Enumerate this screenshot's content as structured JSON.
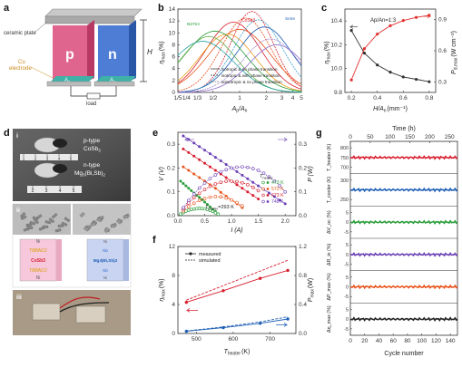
{
  "panels": {
    "a": {
      "label": "a",
      "ceramic": "ceramic plate",
      "cu": "Cu",
      "electrode": "electrode",
      "p": "p",
      "n": "n",
      "ap": "A",
      "ap_sub": "p",
      "an": "A",
      "an_sub": "n",
      "H": "H",
      "load": "load"
    },
    "b": {
      "label": "b",
      "ylabel": "η",
      "ylabel_sub": "max",
      "ylabel_unit": "(%)",
      "xlabel": "A",
      "xlabel_sub1": "p",
      "xlabel_mid": "/A",
      "xlabel_sub2": "n",
      "yticks": [
        "0",
        "2",
        "4",
        "6",
        "8",
        "10",
        "12",
        "14"
      ],
      "xticks": [
        "1/5",
        "1/4",
        "1/3",
        "1/2",
        "1",
        "2",
        "3",
        "4",
        "5"
      ],
      "legend": [
        "isotropic & no phase transition",
        "isotropic & with phase transition",
        "anisotropic & no phase transition"
      ],
      "labels": [
        "CoSb3",
        "Bi2Te3",
        "SnSe"
      ]
    },
    "c": {
      "label": "c",
      "annotation": "Ap/An=1:3",
      "ylabel_left": "η",
      "ylabel_left_sub": "max",
      "ylabel_left_unit": "(%)",
      "ylabel_right": "P",
      "ylabel_right_sub": "d,max",
      "ylabel_right_unit": "(W cm⁻²)",
      "xlabel": "H/A",
      "xlabel_sub": "n",
      "xlabel_unit": "(mm⁻¹)",
      "yticks_left": [
        "9.8",
        "10.0",
        "10.2",
        "10.4"
      ],
      "yticks_right": [
        "0.3",
        "0.6",
        "0.9"
      ],
      "xticks": [
        "0.2",
        "0.4",
        "0.6",
        "0.8"
      ]
    },
    "d": {
      "label": "d",
      "sub_i": "i",
      "sub_ii": "ii",
      "sub_iii": "iii",
      "ptype": "p-type",
      "ptype_mat": "CoSb",
      "ptype_mat_sub": "3",
      "ntype": "n-type",
      "ntype_mat": "Mg",
      "ntype_mat_sub": "3",
      "ntype_mat_tail": "(Bi,Sb)",
      "ntype_mat_tail_sub": "2",
      "ruler_top": [
        "1",
        "2",
        "3",
        "4",
        "5"
      ],
      "ruler_bottom": [
        "2",
        "3",
        "4",
        "5"
      ],
      "stack_left": [
        "Ni",
        "Ti88Al12",
        "CoSb3",
        "Ti88Al12",
        "Ni"
      ],
      "stack_right": [
        "Ni",
        "Nb",
        "Mg3(Bi,Sb)2",
        "Nb",
        "Ni"
      ]
    },
    "e": {
      "label": "e",
      "ylabel_left": "V (V)",
      "ylabel_right": "P (W)",
      "xlabel": "I (A)",
      "yticks_left": [
        "0.0",
        "0.1",
        "0.2",
        "0.3"
      ],
      "yticks_right": [
        "0.0",
        "0.1",
        "0.2",
        "0.3"
      ],
      "xticks": [
        "0.0",
        "0.5",
        "1.0",
        "1.5",
        "2.0"
      ],
      "legend_title": "T",
      "legend_title_sub": "heater",
      "tcooler": "T",
      "tcooler_sub": "cooler",
      "tcooler_val": "=293 K",
      "series": [
        {
          "name": "473 K",
          "color": "#2a9d3a"
        },
        {
          "name": "573 K",
          "color": "#e8541c"
        },
        {
          "name": "673 K",
          "color": "#d81e2e"
        },
        {
          "name": "748 K",
          "color": "#6a3fb5"
        }
      ]
    },
    "f": {
      "label": "f",
      "legend_measured": "measured",
      "legend_simulated": "simulated",
      "ylabel_left": "η",
      "ylabel_left_sub": "max",
      "ylabel_left_unit": "(%)",
      "ylabel_right": "P",
      "ylabel_right_sub": "max",
      "ylabel_right_unit": "(W)",
      "xlabel": "T",
      "xlabel_sub": "heater",
      "xlabel_unit": "(K)",
      "yticks_left": [
        "0",
        "4",
        "8",
        "12"
      ],
      "yticks_right": [
        "0.0",
        "0.4",
        "0.8",
        "1.2"
      ],
      "xticks": [
        "500",
        "600",
        "700"
      ]
    },
    "g": {
      "label": "g",
      "top_label": "Time (h)",
      "top_ticks": [
        "0",
        "50",
        "100",
        "150",
        "200",
        "250"
      ],
      "xlabel": "Cycle number",
      "xticks": [
        "0",
        "20",
        "40",
        "60",
        "80",
        "100",
        "120",
        "140"
      ],
      "rows": [
        {
          "ylabel": "T_heater (K)",
          "yticks": [
            "800",
            "750",
            "700"
          ],
          "color": "#d81e2e"
        },
        {
          "ylabel": "T_cooler (K)",
          "yticks": [
            "300",
            "250"
          ],
          "color": "#1f5fb5"
        },
        {
          "ylabel": "ΔV_oc (%)",
          "yticks": [
            "5",
            "0",
            "-5"
          ],
          "color": "#2a9d3a"
        },
        {
          "ylabel": "ΔR_in (%)",
          "yticks": [
            "5",
            "0",
            "-5"
          ],
          "color": "#6a3fb5"
        },
        {
          "ylabel": "ΔP_max (%)",
          "yticks": [
            "5",
            "0",
            "-5"
          ],
          "color": "#e8541c"
        },
        {
          "ylabel": "Δη_max (%)",
          "yticks": [
            "5",
            "0",
            "-5"
          ],
          "color": "#222222"
        }
      ]
    }
  },
  "chart_data": [
    {
      "type": "line",
      "panel": "c",
      "x": [
        0.2,
        0.3,
        0.4,
        0.5,
        0.6,
        0.7,
        0.8
      ],
      "series": [
        {
          "name": "η_max",
          "values": [
            10.32,
            10.13,
            10.03,
            9.97,
            9.93,
            9.91,
            9.89
          ],
          "color": "#333333"
        },
        {
          "name": "P_d,max",
          "values": [
            0.32,
            0.62,
            0.76,
            0.84,
            0.89,
            0.92,
            0.94
          ],
          "color": "#e03030"
        }
      ],
      "ylim_left": [
        9.8,
        10.5
      ],
      "ylim_right": [
        0.2,
        1.0
      ],
      "xlim": [
        0.15,
        0.85
      ]
    },
    {
      "type": "line",
      "panel": "e",
      "series": [
        {
          "name": "473 K",
          "color": "#2a9d3a",
          "x": [
            0.05,
            0.1,
            0.15,
            0.2,
            0.25,
            0.3,
            0.35,
            0.4,
            0.45,
            0.5,
            0.55,
            0.6,
            0.65,
            0.7,
            0.75
          ],
          "V": [
            0.145,
            0.135,
            0.125,
            0.115,
            0.105,
            0.095,
            0.085,
            0.077,
            0.067,
            0.057,
            0.047,
            0.037,
            0.027,
            0.017,
            0.008
          ],
          "P": [
            0.007,
            0.013,
            0.019,
            0.023,
            0.026,
            0.028,
            0.03,
            0.031,
            0.03,
            0.029,
            0.026,
            0.022,
            0.018,
            0.012,
            0.006
          ]
        },
        {
          "name": "573 K",
          "color": "#e8541c",
          "x": [
            0.1,
            0.2,
            0.3,
            0.4,
            0.5,
            0.6,
            0.7,
            0.8,
            0.9,
            1.0,
            1.1,
            1.2
          ],
          "V": [
            0.205,
            0.19,
            0.175,
            0.16,
            0.145,
            0.13,
            0.115,
            0.098,
            0.082,
            0.066,
            0.05,
            0.034
          ],
          "P": [
            0.02,
            0.038,
            0.052,
            0.064,
            0.072,
            0.078,
            0.08,
            0.079,
            0.074,
            0.066,
            0.055,
            0.041
          ]
        },
        {
          "name": "673 K",
          "color": "#d81e2e",
          "x": [
            0.1,
            0.2,
            0.3,
            0.4,
            0.5,
            0.6,
            0.7,
            0.8,
            0.9,
            1.0,
            1.1,
            1.2,
            1.3,
            1.4,
            1.5
          ],
          "V": [
            0.28,
            0.265,
            0.25,
            0.235,
            0.22,
            0.205,
            0.19,
            0.175,
            0.16,
            0.145,
            0.13,
            0.115,
            0.1,
            0.085,
            0.07
          ],
          "P": [
            0.028,
            0.053,
            0.075,
            0.094,
            0.11,
            0.123,
            0.133,
            0.14,
            0.144,
            0.145,
            0.143,
            0.138,
            0.13,
            0.119,
            0.105
          ]
        },
        {
          "name": "748 K",
          "color": "#6a3fb5",
          "x": [
            0.1,
            0.2,
            0.3,
            0.4,
            0.5,
            0.6,
            0.7,
            0.8,
            0.9,
            1.0,
            1.1,
            1.2,
            1.3,
            1.4,
            1.5,
            1.6,
            1.7,
            1.8,
            1.9,
            2.0
          ],
          "V": [
            0.335,
            0.32,
            0.305,
            0.29,
            0.275,
            0.26,
            0.245,
            0.23,
            0.215,
            0.2,
            0.185,
            0.17,
            0.155,
            0.14,
            0.125,
            0.11,
            0.095,
            0.08,
            0.065,
            0.05
          ],
          "P": [
            0.033,
            0.064,
            0.091,
            0.116,
            0.137,
            0.156,
            0.171,
            0.184,
            0.193,
            0.2,
            0.204,
            0.205,
            0.203,
            0.198,
            0.19,
            0.178,
            0.163,
            0.146,
            0.126,
            0.1
          ]
        }
      ],
      "xlim": [
        0,
        2.2
      ],
      "ylim": [
        0,
        0.35
      ]
    },
    {
      "type": "line",
      "panel": "f",
      "x": [
        473,
        573,
        673,
        748
      ],
      "series": [
        {
          "name": "η_max measured",
          "values": [
            4.3,
            5.9,
            7.6,
            8.7
          ],
          "color": "#d81e2e",
          "axis": "left"
        },
        {
          "name": "η_max simulated",
          "values": [
            4.6,
            6.6,
            8.6,
            10.1
          ],
          "color": "#d81e2e",
          "axis": "left",
          "dashed": true
        },
        {
          "name": "P_max measured",
          "values": [
            0.03,
            0.08,
            0.14,
            0.2
          ],
          "color": "#1f5fb5",
          "axis": "right"
        },
        {
          "name": "P_max simulated",
          "values": [
            0.035,
            0.09,
            0.16,
            0.23
          ],
          "color": "#1f5fb5",
          "axis": "right",
          "dashed": true
        }
      ],
      "xlim": [
        450,
        770
      ],
      "ylim_left": [
        0,
        12
      ],
      "ylim_right": [
        0,
        1.2
      ]
    }
  ]
}
